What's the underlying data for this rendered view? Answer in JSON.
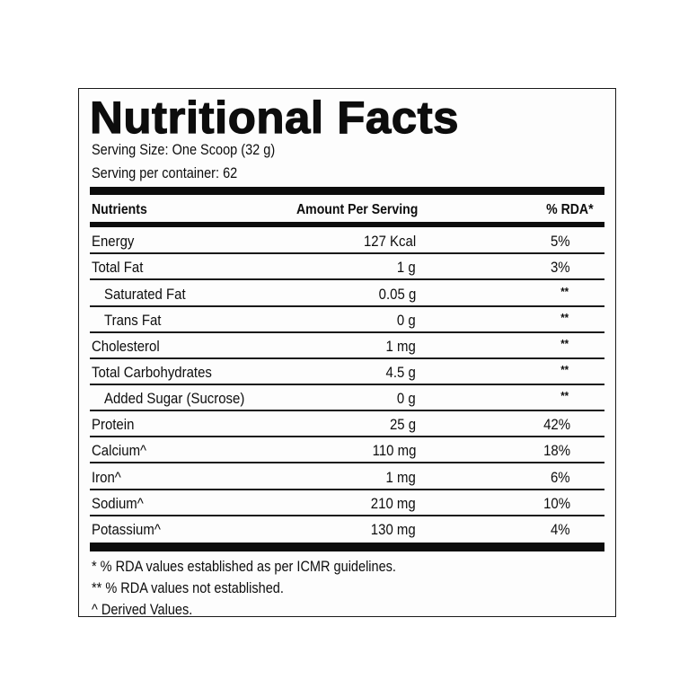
{
  "label": {
    "title": "Nutritional Facts",
    "serving_size": "Serving Size: One Scoop (32 g)",
    "servings_per_container": "Serving per container: 62"
  },
  "table": {
    "headers": {
      "nutrients": "Nutrients",
      "amount": "Amount Per Serving",
      "rda": "% RDA*"
    },
    "rows": [
      {
        "name": "Energy",
        "amount": "127 Kcal",
        "rda": "5%",
        "indent": false
      },
      {
        "name": "Total Fat",
        "amount": "1 g",
        "rda": "3%",
        "indent": false
      },
      {
        "name": "Saturated Fat",
        "amount": "0.05 g",
        "rda": "**",
        "indent": true
      },
      {
        "name": "Trans Fat",
        "amount": "0 g",
        "rda": "**",
        "indent": true
      },
      {
        "name": "Cholesterol",
        "amount": "1 mg",
        "rda": "**",
        "indent": false
      },
      {
        "name": "Total Carbohydrates",
        "amount": "4.5 g",
        "rda": "**",
        "indent": false
      },
      {
        "name": "Added Sugar (Sucrose)",
        "amount": "0 g",
        "rda": "**",
        "indent": true
      },
      {
        "name": "Protein",
        "amount": "25 g",
        "rda": "42%",
        "indent": false
      },
      {
        "name": "Calcium^",
        "amount": "110 mg",
        "rda": "18%",
        "indent": false
      },
      {
        "name": "Iron^",
        "amount": "1 mg",
        "rda": "6%",
        "indent": false
      },
      {
        "name": "Sodium^",
        "amount": "210 mg",
        "rda": "10%",
        "indent": false
      },
      {
        "name": "Potassium^",
        "amount": "130 mg",
        "rda": "4%",
        "indent": false
      }
    ]
  },
  "footnotes": [
    "* % RDA values established as per ICMR guidelines.",
    "** % RDA values not established.",
    "^ Derived Values."
  ]
}
